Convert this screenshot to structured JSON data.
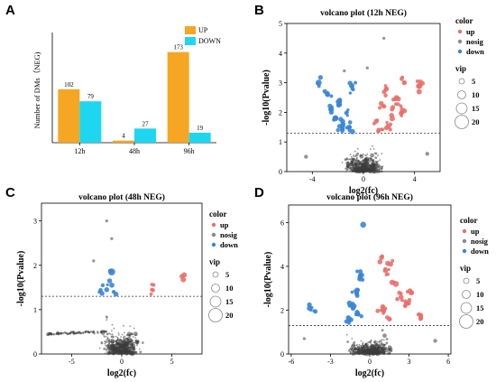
{
  "panels": {
    "A": "A",
    "B": "B",
    "C": "C",
    "D": "D"
  },
  "colors": {
    "up_bar": "#f5a623",
    "down_bar": "#1ed6f0",
    "up": "#e8706c",
    "nosig": "#8a8a8a",
    "down": "#3a85d6",
    "nosig_dark": "#3c3c3c"
  },
  "chart_data": [
    {
      "id": "A",
      "type": "bar",
      "title": "",
      "ylabel": "Number of DMs（NEG)",
      "xlabel": "",
      "categories": [
        "12h",
        "48h",
        "96h"
      ],
      "ylim": [
        0,
        200
      ],
      "legend_position": "top-right",
      "series": [
        {
          "name": "UP",
          "color": "#f5a623",
          "values": [
            102,
            4,
            173
          ]
        },
        {
          "name": "DOWN",
          "color": "#1ed6f0",
          "values": [
            79,
            27,
            19
          ]
        }
      ]
    },
    {
      "id": "B",
      "type": "scatter",
      "title": "volcano plot (12h NEG)",
      "xlabel": "log2(fc)",
      "ylabel": "-log10(Pvalue)",
      "xlim": [
        -6,
        6
      ],
      "ylim": [
        0,
        5
      ],
      "xticks": [
        -4,
        0,
        4
      ],
      "yticks": [
        0,
        1,
        2,
        3,
        4,
        5
      ],
      "threshold": 1.3,
      "legend": {
        "color_title": "color",
        "groups": [
          "up",
          "nosig",
          "down"
        ],
        "vip_title": "vip",
        "vip_levels": [
          "5",
          "10",
          "15",
          "20"
        ]
      },
      "dots": [
        {
          "x": -3.5,
          "y": 3.0,
          "g": "down",
          "v": 6
        },
        {
          "x": -2.8,
          "y": 2.6,
          "g": "down",
          "v": 5
        },
        {
          "x": -2.5,
          "y": 2.1,
          "g": "down",
          "v": 5
        },
        {
          "x": -2.2,
          "y": 1.8,
          "g": "down",
          "v": 6
        },
        {
          "x": -1.9,
          "y": 2.4,
          "g": "down",
          "v": 5
        },
        {
          "x": -1.6,
          "y": 1.6,
          "g": "down",
          "v": 5
        },
        {
          "x": -1.3,
          "y": 2.0,
          "g": "down",
          "v": 4
        },
        {
          "x": -1.1,
          "y": 1.5,
          "g": "down",
          "v": 5
        },
        {
          "x": -2.0,
          "y": 1.4,
          "g": "down",
          "v": 4
        },
        {
          "x": -0.9,
          "y": 2.9,
          "g": "down",
          "v": 5
        },
        {
          "x": 1.0,
          "y": 1.7,
          "g": "up",
          "v": 5
        },
        {
          "x": 1.4,
          "y": 2.3,
          "g": "up",
          "v": 5
        },
        {
          "x": 1.8,
          "y": 2.8,
          "g": "up",
          "v": 5
        },
        {
          "x": 2.2,
          "y": 1.9,
          "g": "up",
          "v": 5
        },
        {
          "x": 2.6,
          "y": 2.5,
          "g": "up",
          "v": 5
        },
        {
          "x": 3.0,
          "y": 2.0,
          "g": "up",
          "v": 5
        },
        {
          "x": 3.2,
          "y": 3.0,
          "g": "up",
          "v": 5
        },
        {
          "x": 4.4,
          "y": 2.9,
          "g": "up",
          "v": 6
        },
        {
          "x": 1.2,
          "y": 1.4,
          "g": "up",
          "v": 5
        },
        {
          "x": 2.0,
          "y": 1.5,
          "g": "up",
          "v": 4
        },
        {
          "x": 0.3,
          "y": 3.5,
          "g": "nosig",
          "v": 3
        },
        {
          "x": 1.6,
          "y": 4.5,
          "g": "nosig",
          "v": 3
        },
        {
          "x": -1.5,
          "y": 3.4,
          "g": "nosig",
          "v": 3
        },
        {
          "x": 5.0,
          "y": 0.6,
          "g": "nosig",
          "v": 4
        },
        {
          "x": -4.5,
          "y": 0.5,
          "g": "nosig",
          "v": 4
        }
      ]
    },
    {
      "id": "C",
      "type": "scatter",
      "title": "volcano plot (48h NEG)",
      "xlabel": "log2(fc)",
      "ylabel": "-log10(Pvalue)",
      "xlim": [
        -8,
        8
      ],
      "ylim": [
        0,
        3.4
      ],
      "xticks": [
        -5,
        0,
        5
      ],
      "yticks": [
        0,
        1,
        2,
        3
      ],
      "threshold": 1.3,
      "legend": {
        "color_title": "color",
        "groups": [
          "up",
          "nosig",
          "down"
        ],
        "vip_title": "vip",
        "vip_levels": [
          "5",
          "10",
          "15",
          "20"
        ]
      },
      "dots": [
        {
          "x": -1.0,
          "y": 1.85,
          "g": "down",
          "v": 7
        },
        {
          "x": -1.2,
          "y": 1.65,
          "g": "down",
          "v": 5
        },
        {
          "x": -1.5,
          "y": 1.45,
          "g": "down",
          "v": 5
        },
        {
          "x": -2.2,
          "y": 1.4,
          "g": "down",
          "v": 4
        },
        {
          "x": -0.8,
          "y": 1.4,
          "g": "down",
          "v": 4
        },
        {
          "x": -1.9,
          "y": 1.55,
          "g": "down",
          "v": 4
        },
        {
          "x": 6.0,
          "y": 1.75,
          "g": "up",
          "v": 5
        },
        {
          "x": 3.0,
          "y": 1.45,
          "g": "up",
          "v": 4
        },
        {
          "x": -1.5,
          "y": 3.0,
          "g": "nosig",
          "v": 3
        },
        {
          "x": -1.0,
          "y": 2.6,
          "g": "nosig",
          "v": 3
        },
        {
          "x": -2.8,
          "y": 2.1,
          "g": "nosig",
          "v": 3
        }
      ]
    },
    {
      "id": "D",
      "type": "scatter",
      "title": "volcano plot (96h NEG)",
      "xlabel": "log2(fc)",
      "ylabel": "-log10(Pvalue)",
      "xlim": [
        -6.2,
        6.2
      ],
      "ylim": [
        0,
        6.8
      ],
      "xticks": [
        -6,
        -3,
        0,
        3,
        6
      ],
      "yticks": [
        0,
        2,
        4,
        6
      ],
      "threshold": 1.3,
      "legend": {
        "color_title": "color",
        "groups": [
          "up",
          "nosig",
          "down"
        ],
        "vip_title": "vip",
        "vip_levels": [
          "5",
          "10",
          "15",
          "20"
        ]
      },
      "dots": [
        {
          "x": -0.5,
          "y": 5.9,
          "g": "down",
          "v": 6
        },
        {
          "x": -0.7,
          "y": 3.6,
          "g": "down",
          "v": 5
        },
        {
          "x": -1.0,
          "y": 2.8,
          "g": "down",
          "v": 5
        },
        {
          "x": -1.3,
          "y": 2.2,
          "g": "down",
          "v": 4
        },
        {
          "x": -0.9,
          "y": 1.8,
          "g": "down",
          "v": 4
        },
        {
          "x": -1.6,
          "y": 1.5,
          "g": "down",
          "v": 4
        },
        {
          "x": -4.5,
          "y": 2.0,
          "g": "down",
          "v": 3
        },
        {
          "x": 0.9,
          "y": 4.4,
          "g": "up",
          "v": 5
        },
        {
          "x": 1.2,
          "y": 3.8,
          "g": "up",
          "v": 5
        },
        {
          "x": 1.6,
          "y": 4.1,
          "g": "up",
          "v": 5
        },
        {
          "x": 2.0,
          "y": 3.2,
          "g": "up",
          "v": 6
        },
        {
          "x": 2.4,
          "y": 2.6,
          "g": "up",
          "v": 5
        },
        {
          "x": 2.8,
          "y": 2.3,
          "g": "up",
          "v": 5
        },
        {
          "x": 3.2,
          "y": 2.8,
          "g": "up",
          "v": 5
        },
        {
          "x": 1.0,
          "y": 2.0,
          "g": "up",
          "v": 5
        },
        {
          "x": 1.5,
          "y": 1.6,
          "g": "up",
          "v": 5
        },
        {
          "x": 3.8,
          "y": 1.8,
          "g": "up",
          "v": 4
        },
        {
          "x": 5.0,
          "y": 0.6,
          "g": "nosig",
          "v": 4
        },
        {
          "x": -5.0,
          "y": 0.7,
          "g": "nosig",
          "v": 3
        }
      ]
    }
  ]
}
